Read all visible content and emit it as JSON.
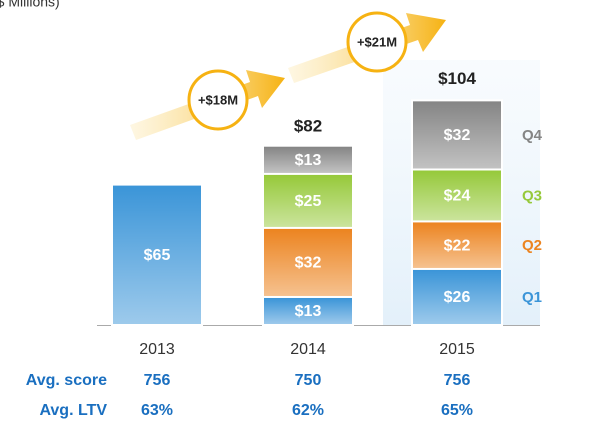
{
  "chart_data": {
    "type": "stacked-bar",
    "subtitle": "($ Millions)",
    "categories": [
      "2013",
      "2014",
      "2015"
    ],
    "ylim": [
      0,
      150
    ],
    "series": [
      {
        "color": "#3b95d8",
        "values": [
          65,
          null,
          null
        ],
        "value_labels": [
          "$65",
          null,
          null
        ]
      },
      {
        "name": "Q1",
        "color": "#3b95d8",
        "values": [
          null,
          13,
          26
        ],
        "value_labels": [
          null,
          "$13",
          "$26"
        ]
      },
      {
        "name": "Q2",
        "color": "#ec8420",
        "values": [
          null,
          32,
          22
        ],
        "value_labels": [
          null,
          "$32",
          "$22"
        ]
      },
      {
        "name": "Q3",
        "color": "#96c93a",
        "values": [
          null,
          25,
          24
        ],
        "value_labels": [
          null,
          "$25",
          "$24"
        ]
      },
      {
        "name": "Q4",
        "color": "#858585",
        "values": [
          null,
          13,
          32
        ],
        "value_labels": [
          null,
          "$13",
          "$32"
        ]
      }
    ],
    "totals": {
      "values": [
        null,
        82,
        104
      ],
      "value_labels": [
        null,
        "$82",
        "$104"
      ]
    },
    "annotations": [
      "+$18M",
      "+$21M"
    ],
    "metrics": [
      {
        "label": "Avg. score",
        "values": [
          756,
          750,
          756
        ]
      },
      {
        "label": "Avg. LTV",
        "values": [
          63,
          62,
          65
        ],
        "value_labels": [
          "63%",
          "62%",
          "65%"
        ]
      }
    ]
  }
}
